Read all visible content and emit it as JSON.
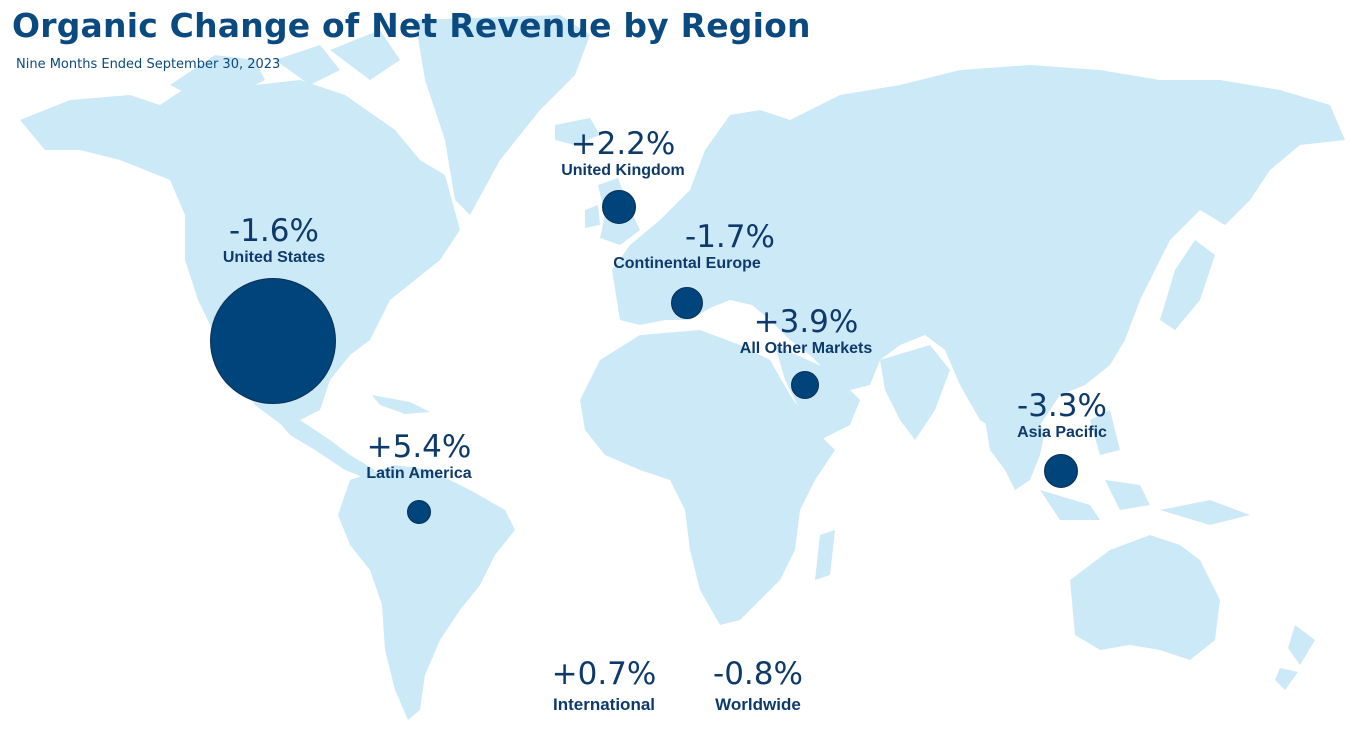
{
  "title": "Organic Change of Net Revenue by Region",
  "subtitle": "Nine Months Ended September 30, 2023",
  "colors": {
    "land": "#cce9f8",
    "bubble": "#00447c",
    "text": "#0d3a6b",
    "title": "#0b4a80"
  },
  "regions": [
    {
      "name": "United States",
      "change": "-1.6%"
    },
    {
      "name": "United Kingdom",
      "change": "+2.2%"
    },
    {
      "name": "Continental Europe",
      "change": "-1.7%"
    },
    {
      "name": "All Other Markets",
      "change": "+3.9%"
    },
    {
      "name": "Asia Pacific",
      "change": "-3.3%"
    },
    {
      "name": "Latin America",
      "change": "+5.4%"
    }
  ],
  "totals": [
    {
      "name": "International",
      "change": "+0.7%"
    },
    {
      "name": "Worldwide",
      "change": "-0.8%"
    }
  ]
}
